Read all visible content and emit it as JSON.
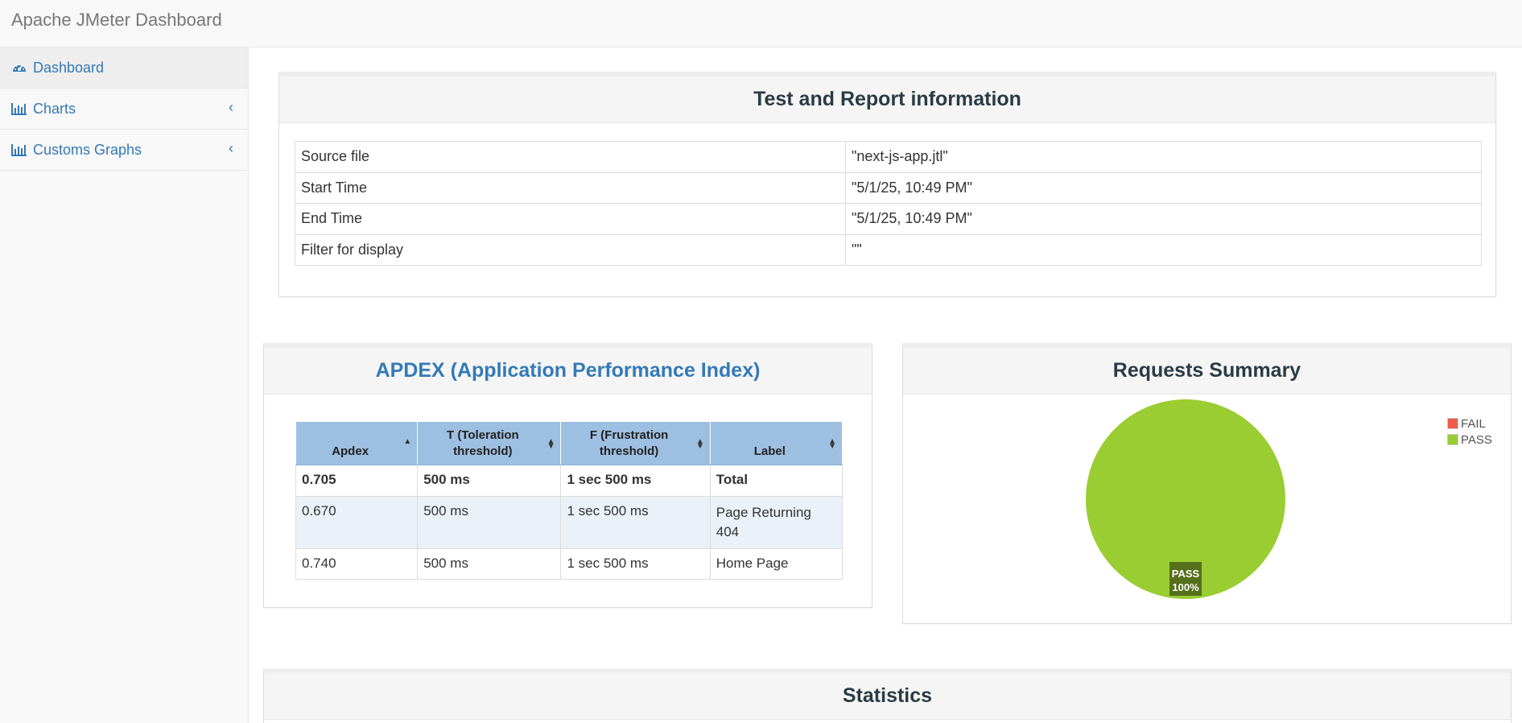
{
  "app": {
    "title": "Apache JMeter Dashboard"
  },
  "sidebar": {
    "items": [
      {
        "label": "Dashboard",
        "icon": "dashboard-icon",
        "active": true
      },
      {
        "label": "Charts",
        "icon": "bar-chart-icon",
        "expandable": true
      },
      {
        "label": "Customs Graphs",
        "icon": "bar-chart-icon",
        "expandable": true
      }
    ]
  },
  "test_info": {
    "title": "Test and Report information",
    "rows": [
      {
        "key": "Source file",
        "value": "\"next-js-app.jtl\""
      },
      {
        "key": "Start Time",
        "value": "\"5/1/25, 10:49 PM\""
      },
      {
        "key": "End Time",
        "value": "\"5/1/25, 10:49 PM\""
      },
      {
        "key": "Filter for display",
        "value": "\"\""
      }
    ]
  },
  "apdex": {
    "title": "APDEX (Application Performance Index)",
    "headers": [
      "Apdex",
      "T (Toleration threshold)",
      "F (Frustration threshold)",
      "Label"
    ],
    "total": {
      "apdex": "0.705",
      "t": "500 ms",
      "f": "1 sec 500 ms",
      "label": "Total"
    },
    "rows": [
      {
        "apdex": "0.670",
        "t": "500 ms",
        "f": "1 sec 500 ms",
        "label": "Page Returning 404"
      },
      {
        "apdex": "0.740",
        "t": "500 ms",
        "f": "1 sec 500 ms",
        "label": "Home Page"
      }
    ]
  },
  "requests_summary": {
    "title": "Requests Summary",
    "legend": [
      {
        "label": "FAIL",
        "color": "#f05a48"
      },
      {
        "label": "PASS",
        "color": "#9acd32"
      }
    ],
    "slice_label": "PASS",
    "slice_percent": "100%"
  },
  "chart_data": {
    "type": "pie",
    "categories": [
      "FAIL",
      "PASS"
    ],
    "values": [
      0,
      100
    ],
    "colors": [
      "#f05a48",
      "#9acd32"
    ],
    "title": "Requests Summary",
    "legend_position": "top-right"
  },
  "statistics": {
    "title": "Statistics"
  },
  "colors": {
    "link": "#337ab7",
    "header_blue": "#9dbfe1",
    "pass_green": "#9acd32"
  }
}
